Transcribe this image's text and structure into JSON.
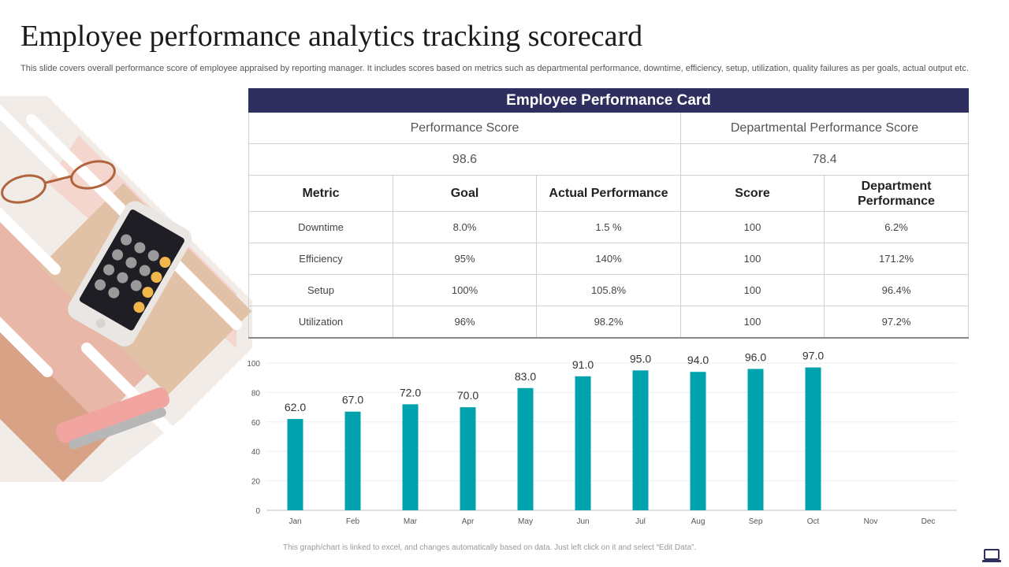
{
  "page": {
    "title": "Employee performance analytics tracking scorecard",
    "subtitle": "This slide covers overall performance score of employee appraised by reporting manager. It includes scores based on metrics such as  departmental performance, downtime, efficiency, setup, utilization, quality failures as per goals, actual output etc.",
    "footnote": "This graph/chart is linked to excel, and changes automatically based on data. Just left click on it and select “Edit Data”."
  },
  "decoration": {
    "image": "office-desk-photo",
    "icon": "laptop-icon"
  },
  "card": {
    "title": "Employee Performance Card",
    "performance_score_label": "Performance Score",
    "performance_score_value": "98.6",
    "dept_score_label": "Departmental Performance Score",
    "dept_score_value": "78.4",
    "columns": [
      "Metric",
      "Goal",
      "Actual Performance",
      "Score",
      "Department Performance"
    ],
    "rows": [
      [
        "Downtime",
        "8.0%",
        "1.5 %",
        "100",
        "6.2%"
      ],
      [
        "Efficiency",
        "95%",
        "140%",
        "100",
        "171.2%"
      ],
      [
        "Setup",
        "100%",
        "105.8%",
        "100",
        "96.4%"
      ],
      [
        "Utilization",
        "96%",
        "98.2%",
        "100",
        "97.2%"
      ]
    ],
    "header_color": "#2e2f5e"
  },
  "chart_data": {
    "type": "bar",
    "categories": [
      "Jan",
      "Feb",
      "Mar",
      "Apr",
      "May",
      "Jun",
      "Jul",
      "Aug",
      "Sep",
      "Oct",
      "Nov",
      "Dec"
    ],
    "values": [
      62.0,
      67.0,
      72.0,
      70.0,
      83.0,
      91.0,
      95.0,
      94.0,
      96.0,
      97.0,
      null,
      null
    ],
    "ylim": [
      0,
      100
    ],
    "yticks": [
      0,
      20,
      40,
      60,
      80,
      100
    ],
    "grid": true,
    "legend": "none",
    "title": "",
    "xlabel": "",
    "ylabel": "",
    "bar_color": "#00a3ad"
  }
}
